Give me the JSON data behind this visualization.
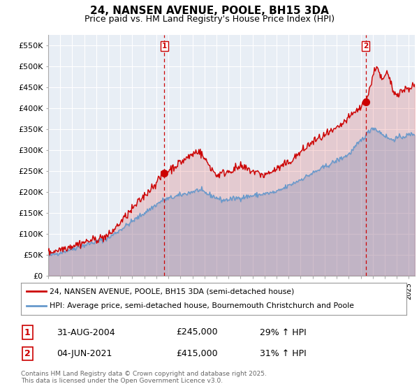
{
  "title": "24, NANSEN AVENUE, POOLE, BH15 3DA",
  "subtitle": "Price paid vs. HM Land Registry's House Price Index (HPI)",
  "ylabel_ticks": [
    "£0",
    "£50K",
    "£100K",
    "£150K",
    "£200K",
    "£250K",
    "£300K",
    "£350K",
    "£400K",
    "£450K",
    "£500K",
    "£550K"
  ],
  "ytick_values": [
    0,
    50000,
    100000,
    150000,
    200000,
    250000,
    300000,
    350000,
    400000,
    450000,
    500000,
    550000
  ],
  "ylim": [
    0,
    575000
  ],
  "xlim_start": 1995.0,
  "xlim_end": 2025.5,
  "red_color": "#cc0000",
  "blue_color": "#6699cc",
  "plot_bg_color": "#e8eef5",
  "sale1_x": 2004.67,
  "sale1_y": 245000,
  "sale1_label": "1",
  "sale2_x": 2021.42,
  "sale2_y": 415000,
  "sale2_label": "2",
  "legend_line1": "24, NANSEN AVENUE, POOLE, BH15 3DA (semi-detached house)",
  "legend_line2": "HPI: Average price, semi-detached house, Bournemouth Christchurch and Poole",
  "annotation1_date": "31-AUG-2004",
  "annotation1_price": "£245,000",
  "annotation1_hpi": "29% ↑ HPI",
  "annotation2_date": "04-JUN-2021",
  "annotation2_price": "£415,000",
  "annotation2_hpi": "31% ↑ HPI",
  "footnote": "Contains HM Land Registry data © Crown copyright and database right 2025.\nThis data is licensed under the Open Government Licence v3.0.",
  "background_color": "#ffffff",
  "grid_color": "#ffffff"
}
